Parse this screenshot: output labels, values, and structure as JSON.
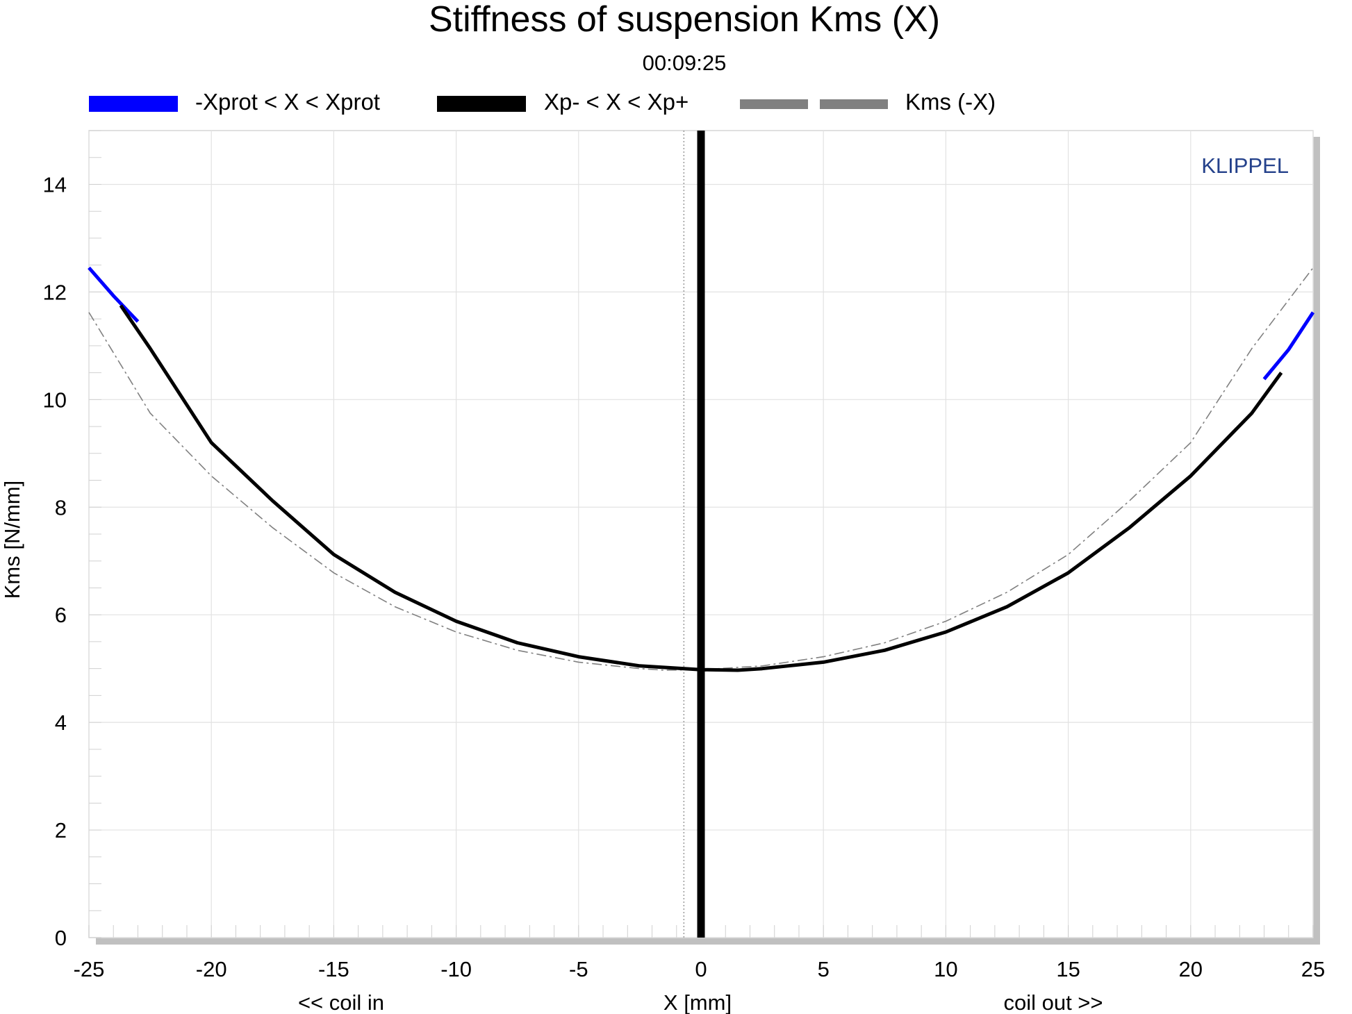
{
  "chart_data": {
    "type": "line",
    "title": "Stiffness of suspension Kms (X)",
    "subtitle": "00:09:25",
    "xlabel": "X [mm]",
    "ylabel": "Kms [N/mm]",
    "x_hint_left": "<< coil in",
    "x_hint_right": "coil out >>",
    "brand": "KLIPPEL",
    "xlim": [
      -25,
      25
    ],
    "ylim": [
      0,
      15
    ],
    "xticks": [
      -25,
      -20,
      -15,
      -10,
      -5,
      0,
      5,
      10,
      15,
      20,
      25
    ],
    "yticks": [
      0,
      2,
      4,
      6,
      8,
      10,
      12,
      14
    ],
    "grid": true,
    "legend_position": "top",
    "colors": {
      "xprot": "#0000ff",
      "xp": "#000000",
      "mirror": "#808080",
      "frame_shadow": "#c0c0c0",
      "brand": "#24418b"
    },
    "zero_line_x": 0,
    "dotted_line_x": -0.7,
    "series": [
      {
        "name": "-Xprot < X < Xprot",
        "x": [
          -25,
          -24,
          -23,
          23,
          24,
          25
        ],
        "y": [
          12.45,
          11.93,
          11.45,
          10.38,
          10.93,
          11.62
        ]
      },
      {
        "name": "Xp- < X < Xp+",
        "x": [
          -23.7,
          -22.5,
          -20,
          -17.5,
          -15,
          -12.5,
          -10,
          -7.5,
          -5,
          -2.5,
          0,
          1.5,
          2.5,
          5,
          7.5,
          10,
          12.5,
          15,
          17.5,
          20,
          22.5,
          23.7
        ],
        "y": [
          11.75,
          10.95,
          9.2,
          8.12,
          7.12,
          6.42,
          5.88,
          5.48,
          5.22,
          5.05,
          4.98,
          4.97,
          5.0,
          5.12,
          5.34,
          5.68,
          6.15,
          6.78,
          7.62,
          8.58,
          9.75,
          10.5
        ]
      },
      {
        "name": "Kms (-X)",
        "x": [
          -25,
          -22.5,
          -20,
          -17.5,
          -15,
          -12.5,
          -10,
          -7.5,
          -5,
          -2.5,
          -1.5,
          0,
          2.5,
          5,
          7.5,
          10,
          12.5,
          15,
          17.5,
          20,
          22.5,
          25
        ],
        "y": [
          11.62,
          9.75,
          8.58,
          7.62,
          6.78,
          6.15,
          5.68,
          5.34,
          5.12,
          5.0,
          4.97,
          4.98,
          5.05,
          5.22,
          5.48,
          5.88,
          6.42,
          7.12,
          8.12,
          9.2,
          10.95,
          12.45
        ]
      }
    ]
  }
}
